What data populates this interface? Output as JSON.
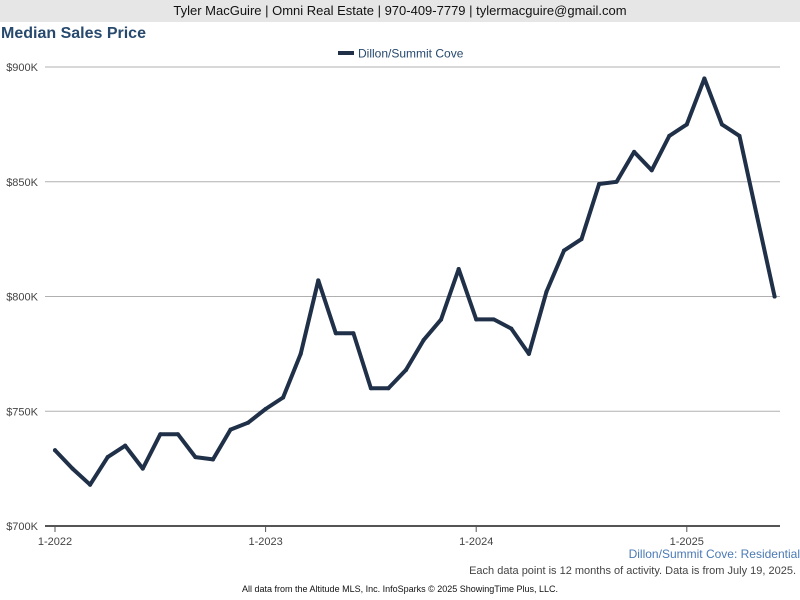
{
  "header": {
    "contact": "Tyler MacGuire | Omni Real Estate | 970-409-7779 | tylermacguire@gmail.com"
  },
  "chart_data": {
    "type": "line",
    "title": "Median Sales Price",
    "subtitle": "Dillon/Summit Cove: Residential",
    "note": "Each data point is 12 months of activity. Data is from July 19, 2025.",
    "legend_position": "top-center",
    "grid": true,
    "series_color": "#1f3048",
    "x": [
      "1-2022",
      "2-2022",
      "3-2022",
      "4-2022",
      "5-2022",
      "6-2022",
      "7-2022",
      "8-2022",
      "9-2022",
      "10-2022",
      "11-2022",
      "12-2022",
      "1-2023",
      "2-2023",
      "3-2023",
      "4-2023",
      "5-2023",
      "6-2023",
      "7-2023",
      "8-2023",
      "9-2023",
      "10-2023",
      "11-2023",
      "12-2023",
      "1-2024",
      "2-2024",
      "3-2024",
      "4-2024",
      "5-2024",
      "6-2024",
      "7-2024",
      "8-2024",
      "9-2024",
      "10-2024",
      "11-2024",
      "12-2024",
      "1-2025",
      "2-2025",
      "3-2025",
      "4-2025",
      "5-2025",
      "6-2025"
    ],
    "x_ticks": [
      "1-2022",
      "1-2023",
      "1-2024",
      "1-2025"
    ],
    "series": [
      {
        "name": "Dillon/Summit Cove",
        "values": [
          733000,
          725000,
          718000,
          730000,
          735000,
          725000,
          740000,
          740000,
          730000,
          729000,
          742000,
          745000,
          751000,
          756000,
          775000,
          807000,
          784000,
          784000,
          760000,
          760000,
          768000,
          781000,
          790000,
          812000,
          790000,
          790000,
          786000,
          775000,
          802000,
          820000,
          825000,
          849000,
          850000,
          863000,
          855000,
          870000,
          875000,
          895000,
          875000,
          870000,
          835000,
          800000
        ]
      }
    ],
    "y_ticks": [
      "$700K",
      "$750K",
      "$800K",
      "$850K",
      "$900K"
    ],
    "ylim": [
      700000,
      900000
    ]
  },
  "footer": {
    "source": "All data from the Altitude MLS, Inc. InfoSparks © 2025 ShowingTime Plus, LLC."
  }
}
